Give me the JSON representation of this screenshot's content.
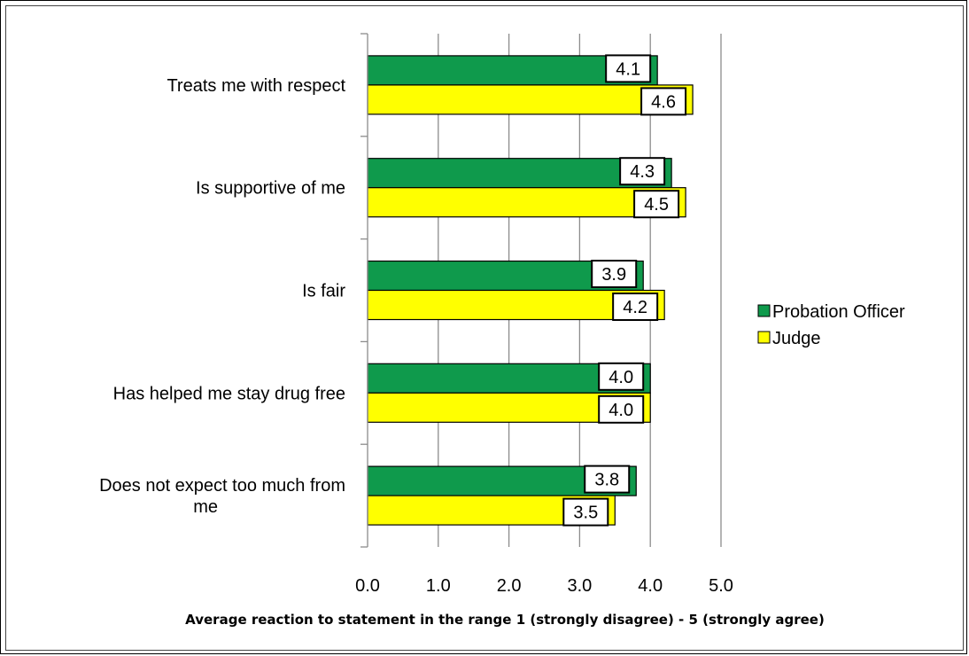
{
  "chart_data": {
    "type": "bar",
    "orientation": "horizontal",
    "categories": [
      "Treats me with respect",
      "Is supportive of me",
      "Is fair",
      "Has helped me stay drug free",
      "Does not expect too much from me"
    ],
    "category_lines": [
      [
        "Treats me with respect"
      ],
      [
        "Is supportive of me"
      ],
      [
        "Is fair"
      ],
      [
        "Has helped me stay drug free"
      ],
      [
        "Does not expect too much from",
        "me"
      ]
    ],
    "series": [
      {
        "name": "Probation Officer",
        "color": "#0f9a4c",
        "values": [
          4.1,
          4.3,
          3.9,
          4.0,
          3.8
        ],
        "labels": [
          "4.1",
          "4.3",
          "3.9",
          "4.0",
          "3.8"
        ]
      },
      {
        "name": "Judge",
        "color": "#ffff00",
        "values": [
          4.6,
          4.5,
          4.2,
          4.0,
          3.5
        ],
        "labels": [
          "4.6",
          "4.5",
          "4.2",
          "4.0",
          "3.5"
        ]
      }
    ],
    "xlim": [
      0,
      5
    ],
    "xticks": [
      "0.0",
      "1.0",
      "2.0",
      "3.0",
      "4.0",
      "5.0"
    ],
    "xlabel": "Average reaction to statement in the range 1 (strongly disagree) - 5 (strongly agree)",
    "title": "",
    "grid": "vertical",
    "legend": "right"
  }
}
